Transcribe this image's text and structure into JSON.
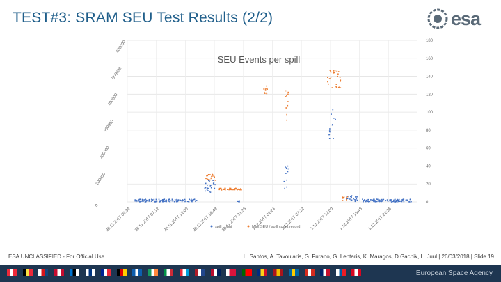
{
  "slide": {
    "title": "TEST#3: SRAM SEU Test Results (2/2)",
    "logo_text": "esa",
    "footer_left": "ESA UNCLASSIFIED - For Official Use",
    "footer_right": "L. Santos, A. Tavoularis, G. Furano, G. Lentaris, K. Maragos, D.Gacnik, L. Juul | 26/03/2018 | Slide 19",
    "agency": "European Space Agency"
  },
  "colors": {
    "title": "#1f5e8a",
    "series_spill": "#4472c4",
    "series_ratio": "#ed7d31",
    "footer_bar": "#1e3651"
  },
  "flags": [
    "austria",
    "belgium",
    "czech",
    "denmark",
    "estonia",
    "finland",
    "france",
    "germany",
    "greece",
    "ireland",
    "italy",
    "luxembourg",
    "netherlands",
    "norway",
    "poland",
    "portugal",
    "romania",
    "spain",
    "sweden",
    "switzerland",
    "uk",
    "slovenia",
    "canada"
  ],
  "chart_data": {
    "type": "scatter",
    "title": "SEU Events per spill",
    "left_axis": {
      "ticks": [
        0,
        100000,
        200000,
        300000,
        400000,
        500000,
        600000
      ],
      "labels": [
        "0",
        "100000",
        "200000",
        "300000",
        "400000",
        "500000",
        "600000"
      ],
      "range": [
        0,
        600000
      ]
    },
    "right_axis": {
      "ticks": [
        0,
        20,
        40,
        60,
        80,
        100,
        120,
        140,
        160,
        180
      ],
      "labels": [
        "0",
        "20",
        "40",
        "60",
        "80",
        "100",
        "120",
        "140",
        "160",
        "180"
      ],
      "range": [
        0,
        180
      ]
    },
    "x_labels": [
      "30.11.2017 09:34",
      "30.11.2017 07:12",
      "30.11.2017 12:00",
      "30.11.2017 16:48",
      "30.11.2017 21:36",
      "1.12.2017 02:24",
      "1.12.2017 07:12",
      "1.12.2017 12:00",
      "1.12.2017 16:48",
      "1.12.2017 21:36"
    ],
    "x_range": [
      0,
      10
    ],
    "legend": [
      "spill count",
      "Max SEU / spill count record"
    ],
    "legend_position": "bottom",
    "series": [
      {
        "name": "spill count",
        "axis": "right",
        "color": "#4472c4",
        "clusters": [
          {
            "x": [
              0.25,
              2.45
            ],
            "y": [
              0,
              3
            ]
          },
          {
            "x": [
              2.65,
              3.05
            ],
            "y": [
              10,
              25
            ]
          },
          {
            "x": [
              3.8,
              3.9
            ],
            "y": [
              0,
              2
            ]
          },
          {
            "x": [
              5.4,
              5.55
            ],
            "y": [
              15,
              40
            ]
          },
          {
            "x": [
              6.95,
              7.2
            ],
            "y": [
              65,
              105
            ]
          },
          {
            "x": [
              7.55,
              7.95
            ],
            "y": [
              0,
              8
            ]
          },
          {
            "x": [
              8.1,
              9.8
            ],
            "y": [
              0,
              3
            ]
          }
        ]
      },
      {
        "name": "Max SEU / spill count record",
        "axis": "left",
        "color": "#ed7d31",
        "clusters": [
          {
            "x": [
              2.7,
              3.05
            ],
            "y": [
              80000,
              105000
            ]
          },
          {
            "x": [
              3.15,
              3.95
            ],
            "y": [
              45000,
              52000
            ]
          },
          {
            "x": [
              4.7,
              4.85
            ],
            "y": [
              405000,
              440000
            ]
          },
          {
            "x": [
              5.45,
              5.55
            ],
            "y": [
              300000,
              430000
            ]
          },
          {
            "x": [
              6.9,
              7.35
            ],
            "y": [
              430000,
              500000
            ]
          },
          {
            "x": [
              7.4,
              7.6
            ],
            "y": [
              5000,
              20000
            ]
          }
        ]
      }
    ]
  }
}
